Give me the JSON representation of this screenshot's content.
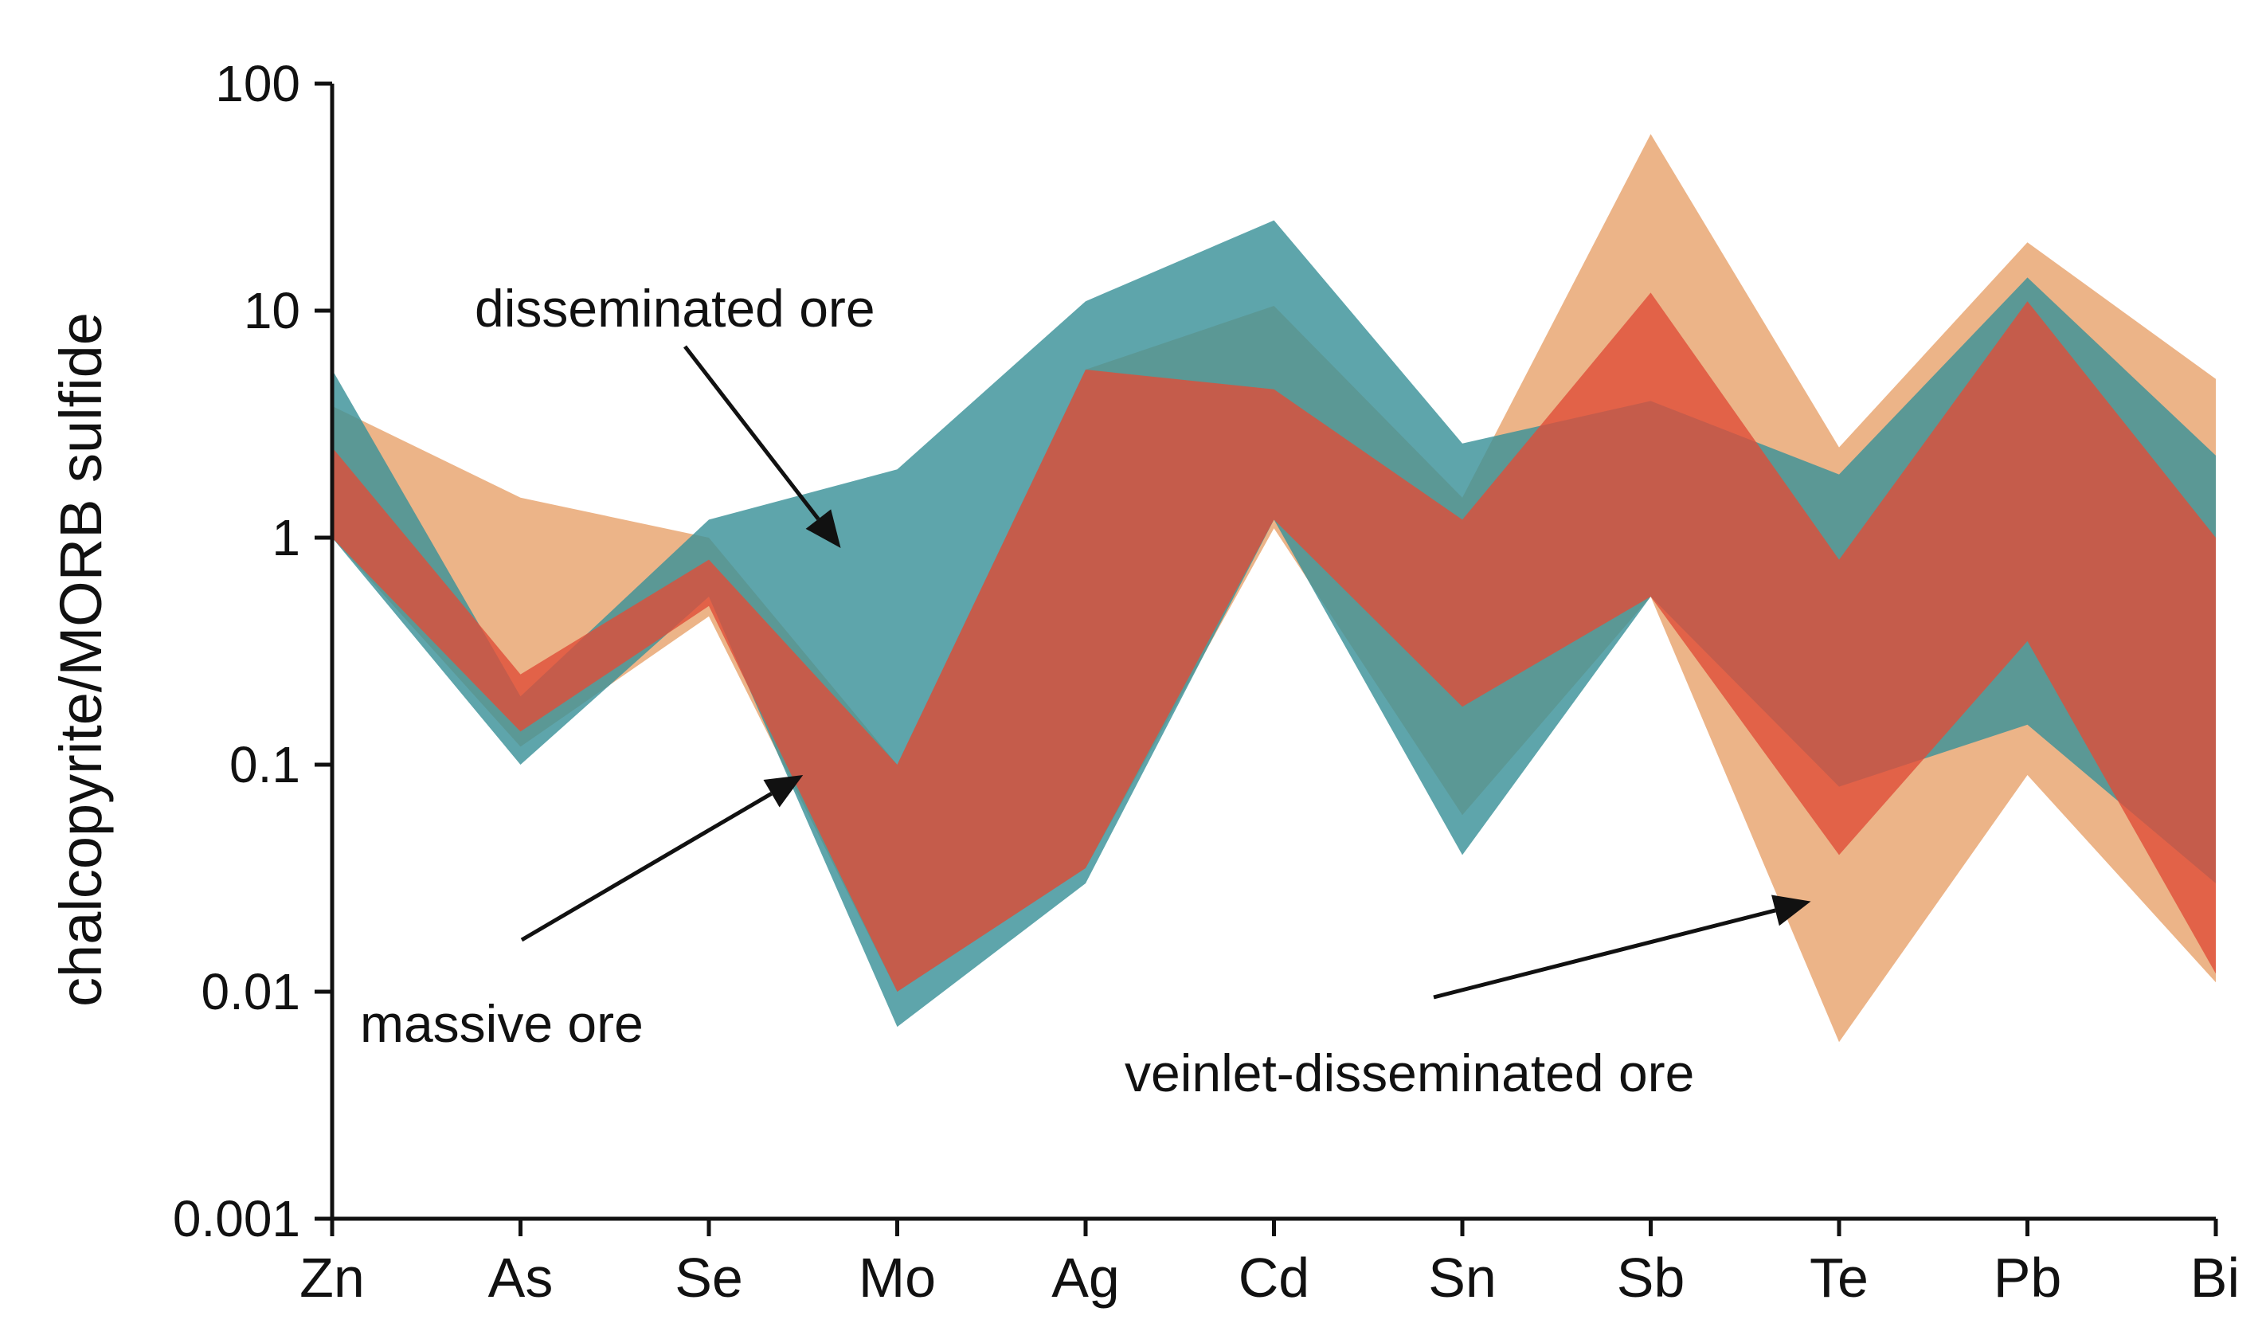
{
  "chart_data": {
    "type": "area",
    "title": "",
    "xlabel": "",
    "ylabel": "chalcopyrite/MORB sulfide",
    "yscale": "log",
    "ylim": [
      0.001,
      100
    ],
    "yticks": [
      "100",
      "10",
      "1",
      "0.1",
      "0.01",
      "0.001"
    ],
    "categories": [
      "Zn",
      "As",
      "Se",
      "Mo",
      "Ag",
      "Cd",
      "Sn",
      "Sb",
      "Te",
      "Pb",
      "Bi"
    ],
    "series": [
      {
        "name": "veinlet-disseminated ore",
        "color": "#e8a36e",
        "opacity": 0.82,
        "upper": [
          3.8,
          1.5,
          1.0,
          0.1,
          5.5,
          10.5,
          1.5,
          60,
          2.5,
          20,
          5.0
        ],
        "lower": [
          1.0,
          0.12,
          0.45,
          0.01,
          0.035,
          1.1,
          0.06,
          0.55,
          0.006,
          0.09,
          0.011
        ]
      },
      {
        "name": "disseminated ore",
        "color": "#3b9199",
        "opacity": 0.82,
        "upper": [
          5.5,
          0.2,
          1.2,
          2.0,
          11.0,
          25.0,
          2.6,
          4.0,
          1.9,
          14.0,
          2.3
        ],
        "lower": [
          1.0,
          0.1,
          0.55,
          0.007,
          0.03,
          1.2,
          0.04,
          0.55,
          0.08,
          0.15,
          0.03
        ]
      },
      {
        "name": "massive ore",
        "color": "#e04e38",
        "opacity": 0.8,
        "upper": [
          2.5,
          0.25,
          0.8,
          0.1,
          5.5,
          4.5,
          1.2,
          12.0,
          0.8,
          11.0,
          1.0
        ],
        "lower": [
          1.0,
          0.14,
          0.5,
          0.01,
          0.035,
          1.2,
          0.18,
          0.55,
          0.04,
          0.35,
          0.012
        ]
      }
    ],
    "annotations": [
      {
        "text": "disseminated ore",
        "arrow_to": {
          "category": "Mo",
          "offset": -0.3,
          "value": 0.9
        }
      },
      {
        "text": "massive ore",
        "arrow_to": {
          "category": "Mo",
          "offset": -0.5,
          "value": 0.09
        }
      },
      {
        "text": "veinlet-disseminated ore",
        "arrow_to": {
          "category": "Te",
          "offset": -0.15,
          "value": 0.025
        }
      }
    ]
  }
}
